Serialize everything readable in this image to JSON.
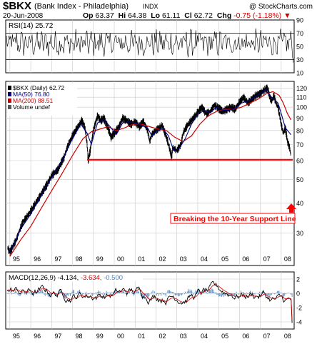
{
  "header": {
    "symbol": "$BKX",
    "name": "(Bank Index - Philadelphia)",
    "exchange": "INDX",
    "date": "20-Jun-2008",
    "open_label": "Op",
    "open": "63.37",
    "high_label": "Hi",
    "high": "64.38",
    "low_label": "Lo",
    "low": "61.11",
    "close_label": "Cl",
    "close": "62.72",
    "change_label": "Chg",
    "change": "-0.75 (-1.18%)",
    "change_marker": "▼",
    "credit": "@ StockCharts.com"
  },
  "colors": {
    "price": "#000000",
    "ma50": "#000080",
    "ma200": "#cc0000",
    "support": "#ff0000",
    "macd_signal": "#cc0000",
    "macd_hist": "#4a7fc0",
    "grid": "#c8c8c8",
    "rsi_fill": "#8c8c8c"
  },
  "chart_data": [
    {
      "type": "line",
      "panel": "RSI",
      "title": "RSI(14) 25.72",
      "ylim": [
        10,
        90
      ],
      "y_ticks": [
        90,
        70,
        50,
        30,
        10
      ],
      "ref_lines": [
        70,
        30
      ],
      "last_value": 25.72
    },
    {
      "type": "line",
      "panel": "Price",
      "title": "$BKX (Daily) 62.72",
      "y_scale": "log",
      "ylim": [
        22,
        128
      ],
      "y_ticks": [
        120,
        110,
        100,
        90,
        80,
        70,
        60,
        50,
        40,
        30
      ],
      "x_ticks": [
        "95",
        "96",
        "97",
        "98",
        "99",
        "00",
        "01",
        "02",
        "03",
        "04",
        "05",
        "06",
        "07",
        "08"
      ],
      "series": [
        {
          "name": "$BKX (Daily)",
          "last": 62.72,
          "x": [
            1994.9,
            1995.0,
            1995.3,
            1995.6,
            1996.0,
            1996.4,
            1996.8,
            1997.0,
            1997.3,
            1997.6,
            1997.8,
            1998.0,
            1998.3,
            1998.45,
            1998.6,
            1998.7,
            1998.75,
            1998.85,
            1999.0,
            1999.2,
            1999.35,
            1999.5,
            1999.7,
            1999.85,
            2000.0,
            2000.2,
            2000.4,
            2000.6,
            2000.8,
            2001.0,
            2001.2,
            2001.4,
            2001.6,
            2001.7,
            2001.8,
            2002.0,
            2002.3,
            2002.5,
            2002.6,
            2002.75,
            2002.8,
            2003.0,
            2003.2,
            2003.3,
            2003.5,
            2003.7,
            2004.0,
            2004.2,
            2004.4,
            2004.6,
            2004.8,
            2005.0,
            2005.2,
            2005.4,
            2005.6,
            2005.8,
            2006.0,
            2006.2,
            2006.4,
            2006.6,
            2006.8,
            2007.0,
            2007.1,
            2007.2,
            2007.35,
            2007.45,
            2007.55,
            2007.65,
            2007.75,
            2007.85,
            2007.95,
            2008.0,
            2008.1,
            2008.2,
            2008.3,
            2008.4,
            2008.47
          ],
          "values": [
            26,
            25,
            28,
            33,
            37,
            42,
            48,
            52,
            55,
            62,
            70,
            76,
            84,
            88,
            82,
            70,
            60,
            66,
            80,
            92,
            88,
            90,
            82,
            75,
            78,
            82,
            90,
            88,
            85,
            87,
            83,
            87,
            80,
            72,
            77,
            80,
            84,
            75,
            70,
            62,
            68,
            66,
            70,
            78,
            84,
            88,
            95,
            100,
            94,
            96,
            102,
            99,
            96,
            98,
            100,
            98,
            105,
            110,
            104,
            108,
            112,
            114,
            116,
            118,
            120,
            110,
            106,
            112,
            104,
            100,
            90,
            85,
            78,
            82,
            72,
            68,
            62.72
          ]
        },
        {
          "name": "MA(50)",
          "last": 76.8,
          "x": [
            1995.0,
            1995.5,
            1996.0,
            1996.5,
            1997.0,
            1997.5,
            1998.0,
            1998.4,
            1998.7,
            1998.9,
            1999.2,
            1999.5,
            1999.8,
            2000.1,
            2000.4,
            2000.7,
            2001.0,
            2001.3,
            2001.6,
            2001.8,
            2002.0,
            2002.3,
            2002.6,
            2002.85,
            2003.1,
            2003.4,
            2003.7,
            2004.0,
            2004.3,
            2004.6,
            2004.9,
            2005.2,
            2005.5,
            2005.8,
            2006.1,
            2006.4,
            2006.7,
            2007.0,
            2007.25,
            2007.45,
            2007.65,
            2007.85,
            2008.0,
            2008.2,
            2008.47
          ],
          "values": [
            25,
            31,
            36,
            43,
            51,
            60,
            74,
            85,
            78,
            70,
            86,
            89,
            83,
            77,
            86,
            87,
            86,
            84,
            82,
            76,
            79,
            82,
            76,
            66,
            67,
            74,
            85,
            93,
            97,
            95,
            100,
            97,
            97,
            99,
            104,
            106,
            110,
            114,
            118,
            112,
            108,
            104,
            94,
            82,
            76.8
          ]
        },
        {
          "name": "MA(200)",
          "last": 88.51,
          "x": [
            1995.0,
            1995.5,
            1996.0,
            1996.5,
            1997.0,
            1997.5,
            1998.0,
            1998.5,
            1998.9,
            1999.3,
            1999.7,
            2000.1,
            2000.5,
            2000.9,
            2001.3,
            2001.7,
            2002.1,
            2002.5,
            2002.9,
            2003.3,
            2003.7,
            2004.1,
            2004.5,
            2004.9,
            2005.3,
            2005.7,
            2006.1,
            2006.5,
            2006.9,
            2007.3,
            2007.6,
            2007.9,
            2008.1,
            2008.3,
            2008.47
          ],
          "values": [
            24,
            28,
            32,
            38,
            45,
            53,
            63,
            74,
            79,
            81,
            83,
            80,
            82,
            85,
            85,
            83,
            81,
            80,
            75,
            72,
            76,
            85,
            92,
            96,
            98,
            98,
            100,
            104,
            108,
            114,
            116,
            112,
            104,
            94,
            88.51
          ]
        }
      ],
      "legend": [
        {
          "label": "$BKX (Daily) 62.72"
        },
        {
          "label": "MA(50) 76.80"
        },
        {
          "label": "MA(200) 88.51"
        },
        {
          "label": "Volume undef"
        }
      ],
      "annotations": {
        "support_level": 60.5,
        "support_start": 1998.7,
        "support_label": "Breaking the 10-Year Support Line"
      }
    },
    {
      "type": "line",
      "panel": "MACD",
      "title": "MACD(12,26,9)",
      "values_label": [
        "-4.134,",
        "-3.634,",
        "-0.500"
      ],
      "ylim": [
        -5,
        3
      ],
      "y_ticks": [
        2,
        0,
        -2,
        -4
      ],
      "x_ticks": [
        "95",
        "96",
        "97",
        "98",
        "99",
        "00",
        "01",
        "02",
        "03",
        "04",
        "05",
        "06",
        "07",
        "08"
      ],
      "last_values": {
        "macd": -4.134,
        "signal": -3.634,
        "histogram": -0.5
      }
    }
  ]
}
